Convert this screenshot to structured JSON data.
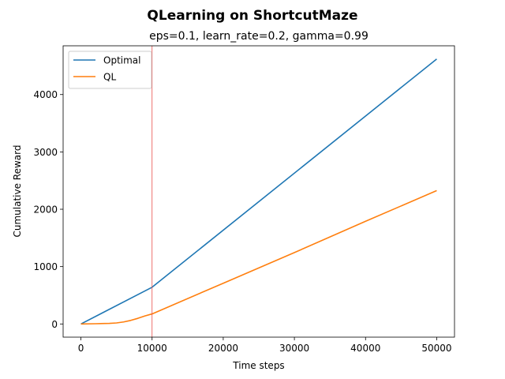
{
  "chart_data": {
    "type": "line",
    "title": "QLearning on ShortcutMaze",
    "subtitle": "eps=0.1, learn_rate=0.2, gamma=0.99",
    "xlabel": "Time steps",
    "ylabel": "Cumulative Reward",
    "xlim": [
      -2500,
      52500
    ],
    "ylim": [
      -230,
      4850
    ],
    "xticks": [
      0,
      10000,
      20000,
      30000,
      40000,
      50000
    ],
    "yticks": [
      0,
      1000,
      2000,
      3000,
      4000
    ],
    "grid": false,
    "legend_position": "top-left",
    "vline": {
      "x": 10000,
      "color": "#e8504a"
    },
    "series": [
      {
        "name": "Optimal",
        "color": "#1f77b4",
        "x": [
          0,
          10000,
          50000
        ],
        "y": [
          0,
          640,
          4620
        ]
      },
      {
        "name": "QL",
        "color": "#ff7f0e",
        "x": [
          0,
          2000,
          4000,
          5000,
          6000,
          7000,
          8000,
          9000,
          10000,
          20000,
          30000,
          40000,
          50000
        ],
        "y": [
          0,
          4,
          10,
          18,
          35,
          62,
          98,
          140,
          175,
          710,
          1245,
          1790,
          2325
        ]
      }
    ]
  }
}
